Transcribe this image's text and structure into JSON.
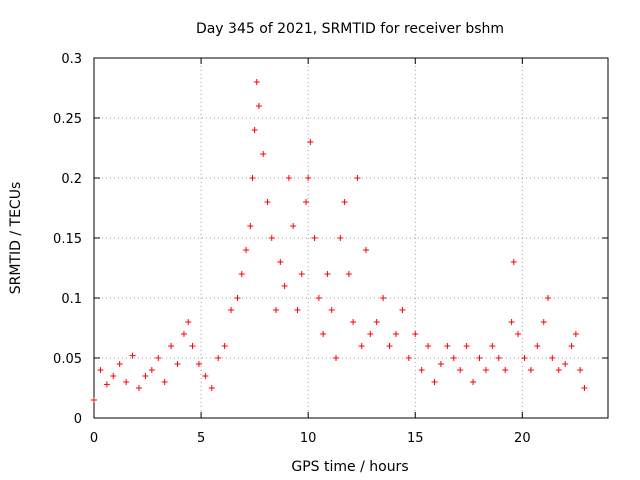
{
  "chart_data": {
    "type": "scatter",
    "title": "Day 345 of 2021, SRMTID for receiver bshm",
    "xlabel": "GPS time / hours",
    "ylabel": "SRMTID / TECUs",
    "xlim": [
      0,
      24
    ],
    "ylim": [
      0,
      0.3
    ],
    "xticks": [
      0,
      5,
      10,
      15,
      20
    ],
    "xtick_labels": [
      "0",
      "5",
      "10",
      "15",
      "20"
    ],
    "yticks": [
      0,
      0.05,
      0.1,
      0.15,
      0.2,
      0.25,
      0.3
    ],
    "ytick_labels": [
      "0",
      "0.05",
      "0.1",
      "0.15",
      "0.2",
      "0.25",
      "0.3"
    ],
    "grid": true,
    "marker": "+",
    "marker_color": "#ff0000",
    "series": [
      {
        "name": "SRMTID",
        "x": [
          0.0,
          0.3,
          0.6,
          0.9,
          1.2,
          1.5,
          1.8,
          2.1,
          2.4,
          2.7,
          3.0,
          3.3,
          3.6,
          3.9,
          4.2,
          4.4,
          4.6,
          4.9,
          5.2,
          5.5,
          5.8,
          6.1,
          6.4,
          6.7,
          6.9,
          7.1,
          7.3,
          7.4,
          7.5,
          7.6,
          7.7,
          7.9,
          8.1,
          8.3,
          8.5,
          8.7,
          8.9,
          9.1,
          9.3,
          9.5,
          9.7,
          9.9,
          10.0,
          10.1,
          10.3,
          10.5,
          10.7,
          10.9,
          11.1,
          11.3,
          11.5,
          11.7,
          11.9,
          12.1,
          12.3,
          12.5,
          12.7,
          12.9,
          13.2,
          13.5,
          13.8,
          14.1,
          14.4,
          14.7,
          15.0,
          15.3,
          15.6,
          15.9,
          16.2,
          16.5,
          16.8,
          17.1,
          17.4,
          17.7,
          18.0,
          18.3,
          18.6,
          18.9,
          19.2,
          19.5,
          19.6,
          19.8,
          20.1,
          20.4,
          20.7,
          21.0,
          21.2,
          21.4,
          21.7,
          22.0,
          22.3,
          22.5,
          22.7,
          22.9
        ],
        "y": [
          0.015,
          0.04,
          0.028,
          0.035,
          0.045,
          0.03,
          0.052,
          0.025,
          0.035,
          0.04,
          0.05,
          0.03,
          0.06,
          0.045,
          0.07,
          0.08,
          0.06,
          0.045,
          0.035,
          0.025,
          0.05,
          0.06,
          0.09,
          0.1,
          0.12,
          0.14,
          0.16,
          0.2,
          0.24,
          0.28,
          0.26,
          0.22,
          0.18,
          0.15,
          0.09,
          0.13,
          0.11,
          0.2,
          0.16,
          0.09,
          0.12,
          0.18,
          0.2,
          0.23,
          0.15,
          0.1,
          0.07,
          0.12,
          0.09,
          0.05,
          0.15,
          0.18,
          0.12,
          0.08,
          0.2,
          0.06,
          0.14,
          0.07,
          0.08,
          0.1,
          0.06,
          0.07,
          0.09,
          0.05,
          0.07,
          0.04,
          0.06,
          0.03,
          0.045,
          0.06,
          0.05,
          0.04,
          0.06,
          0.03,
          0.05,
          0.04,
          0.06,
          0.05,
          0.04,
          0.08,
          0.13,
          0.07,
          0.05,
          0.04,
          0.06,
          0.08,
          0.1,
          0.05,
          0.04,
          0.045,
          0.06,
          0.07,
          0.04,
          0.025
        ]
      }
    ]
  }
}
